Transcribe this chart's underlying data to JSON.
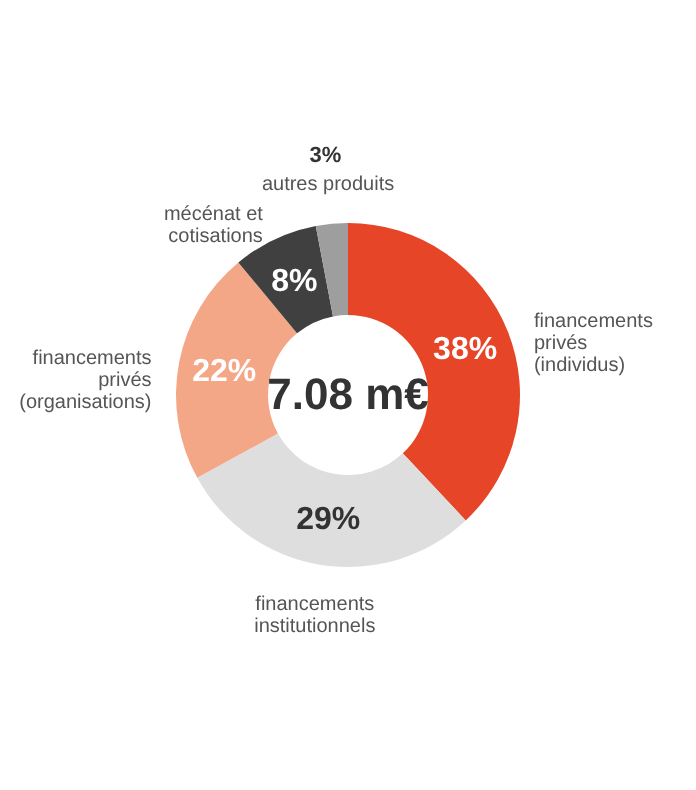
{
  "chart_data": {
    "type": "donut",
    "categories": [
      "financements privés (individus)",
      "financements institutionnels",
      "financements privés (organisations)",
      "mécénat et cotisations",
      "autres produits"
    ],
    "values": [
      38,
      29,
      22,
      8,
      3
    ],
    "value_labels": [
      "38%",
      "29%",
      "22%",
      "8%",
      "3%"
    ],
    "colors": [
      "#e64527",
      "#dedede",
      "#f3a787",
      "#404040",
      "#9e9e9e"
    ],
    "annotations": [
      "7.08 m€"
    ],
    "legend": false
  }
}
